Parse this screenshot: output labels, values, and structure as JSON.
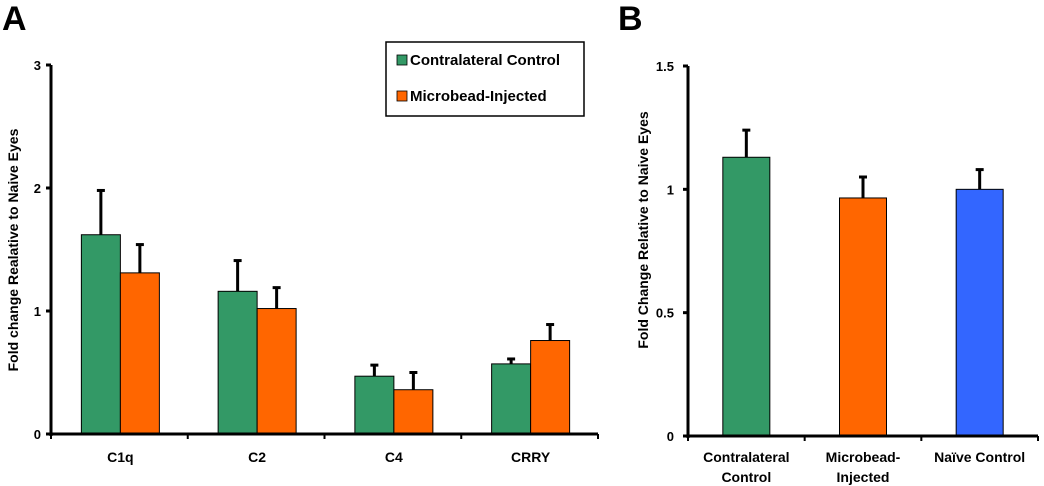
{
  "chart_data": [
    {
      "panel": "A",
      "type": "bar",
      "title": "",
      "xlabel": "",
      "ylabel": "Fold change Realative to Naive Eyes",
      "ylim": [
        0,
        3
      ],
      "yticks": [
        "0",
        "1",
        "2",
        "3"
      ],
      "categories": [
        "C1q",
        "C2",
        "C4",
        "CRRY"
      ],
      "series": [
        {
          "name": "Contralateral Control",
          "color": "#339966",
          "values": [
            1.62,
            1.16,
            0.47,
            0.57
          ],
          "error": [
            0.36,
            0.25,
            0.09,
            0.04
          ]
        },
        {
          "name": "Microbead-Injected",
          "color": "#FF6600",
          "values": [
            1.31,
            1.02,
            0.36,
            0.76
          ],
          "error": [
            0.23,
            0.17,
            0.14,
            0.13
          ]
        }
      ],
      "legend": {
        "placement": "top-right",
        "entries": [
          "Contralateral Control",
          "Microbead-Injected"
        ]
      },
      "grid": false
    },
    {
      "panel": "B",
      "type": "bar",
      "title": "",
      "xlabel": "",
      "ylabel": "Fold Change  Relative to Naive Eyes",
      "ylim": [
        0,
        1.5
      ],
      "yticks": [
        "0",
        "0.5",
        "1",
        "1.5"
      ],
      "categories": [
        [
          "Contralateral",
          "Control"
        ],
        [
          "Microbead-",
          "Injected"
        ],
        [
          "Naïve Control"
        ]
      ],
      "values": [
        1.13,
        0.965,
        1.0
      ],
      "error": [
        0.11,
        0.085,
        0.08
      ],
      "colors": [
        "#339966",
        "#FF6600",
        "#3366FF"
      ],
      "grid": false
    }
  ]
}
